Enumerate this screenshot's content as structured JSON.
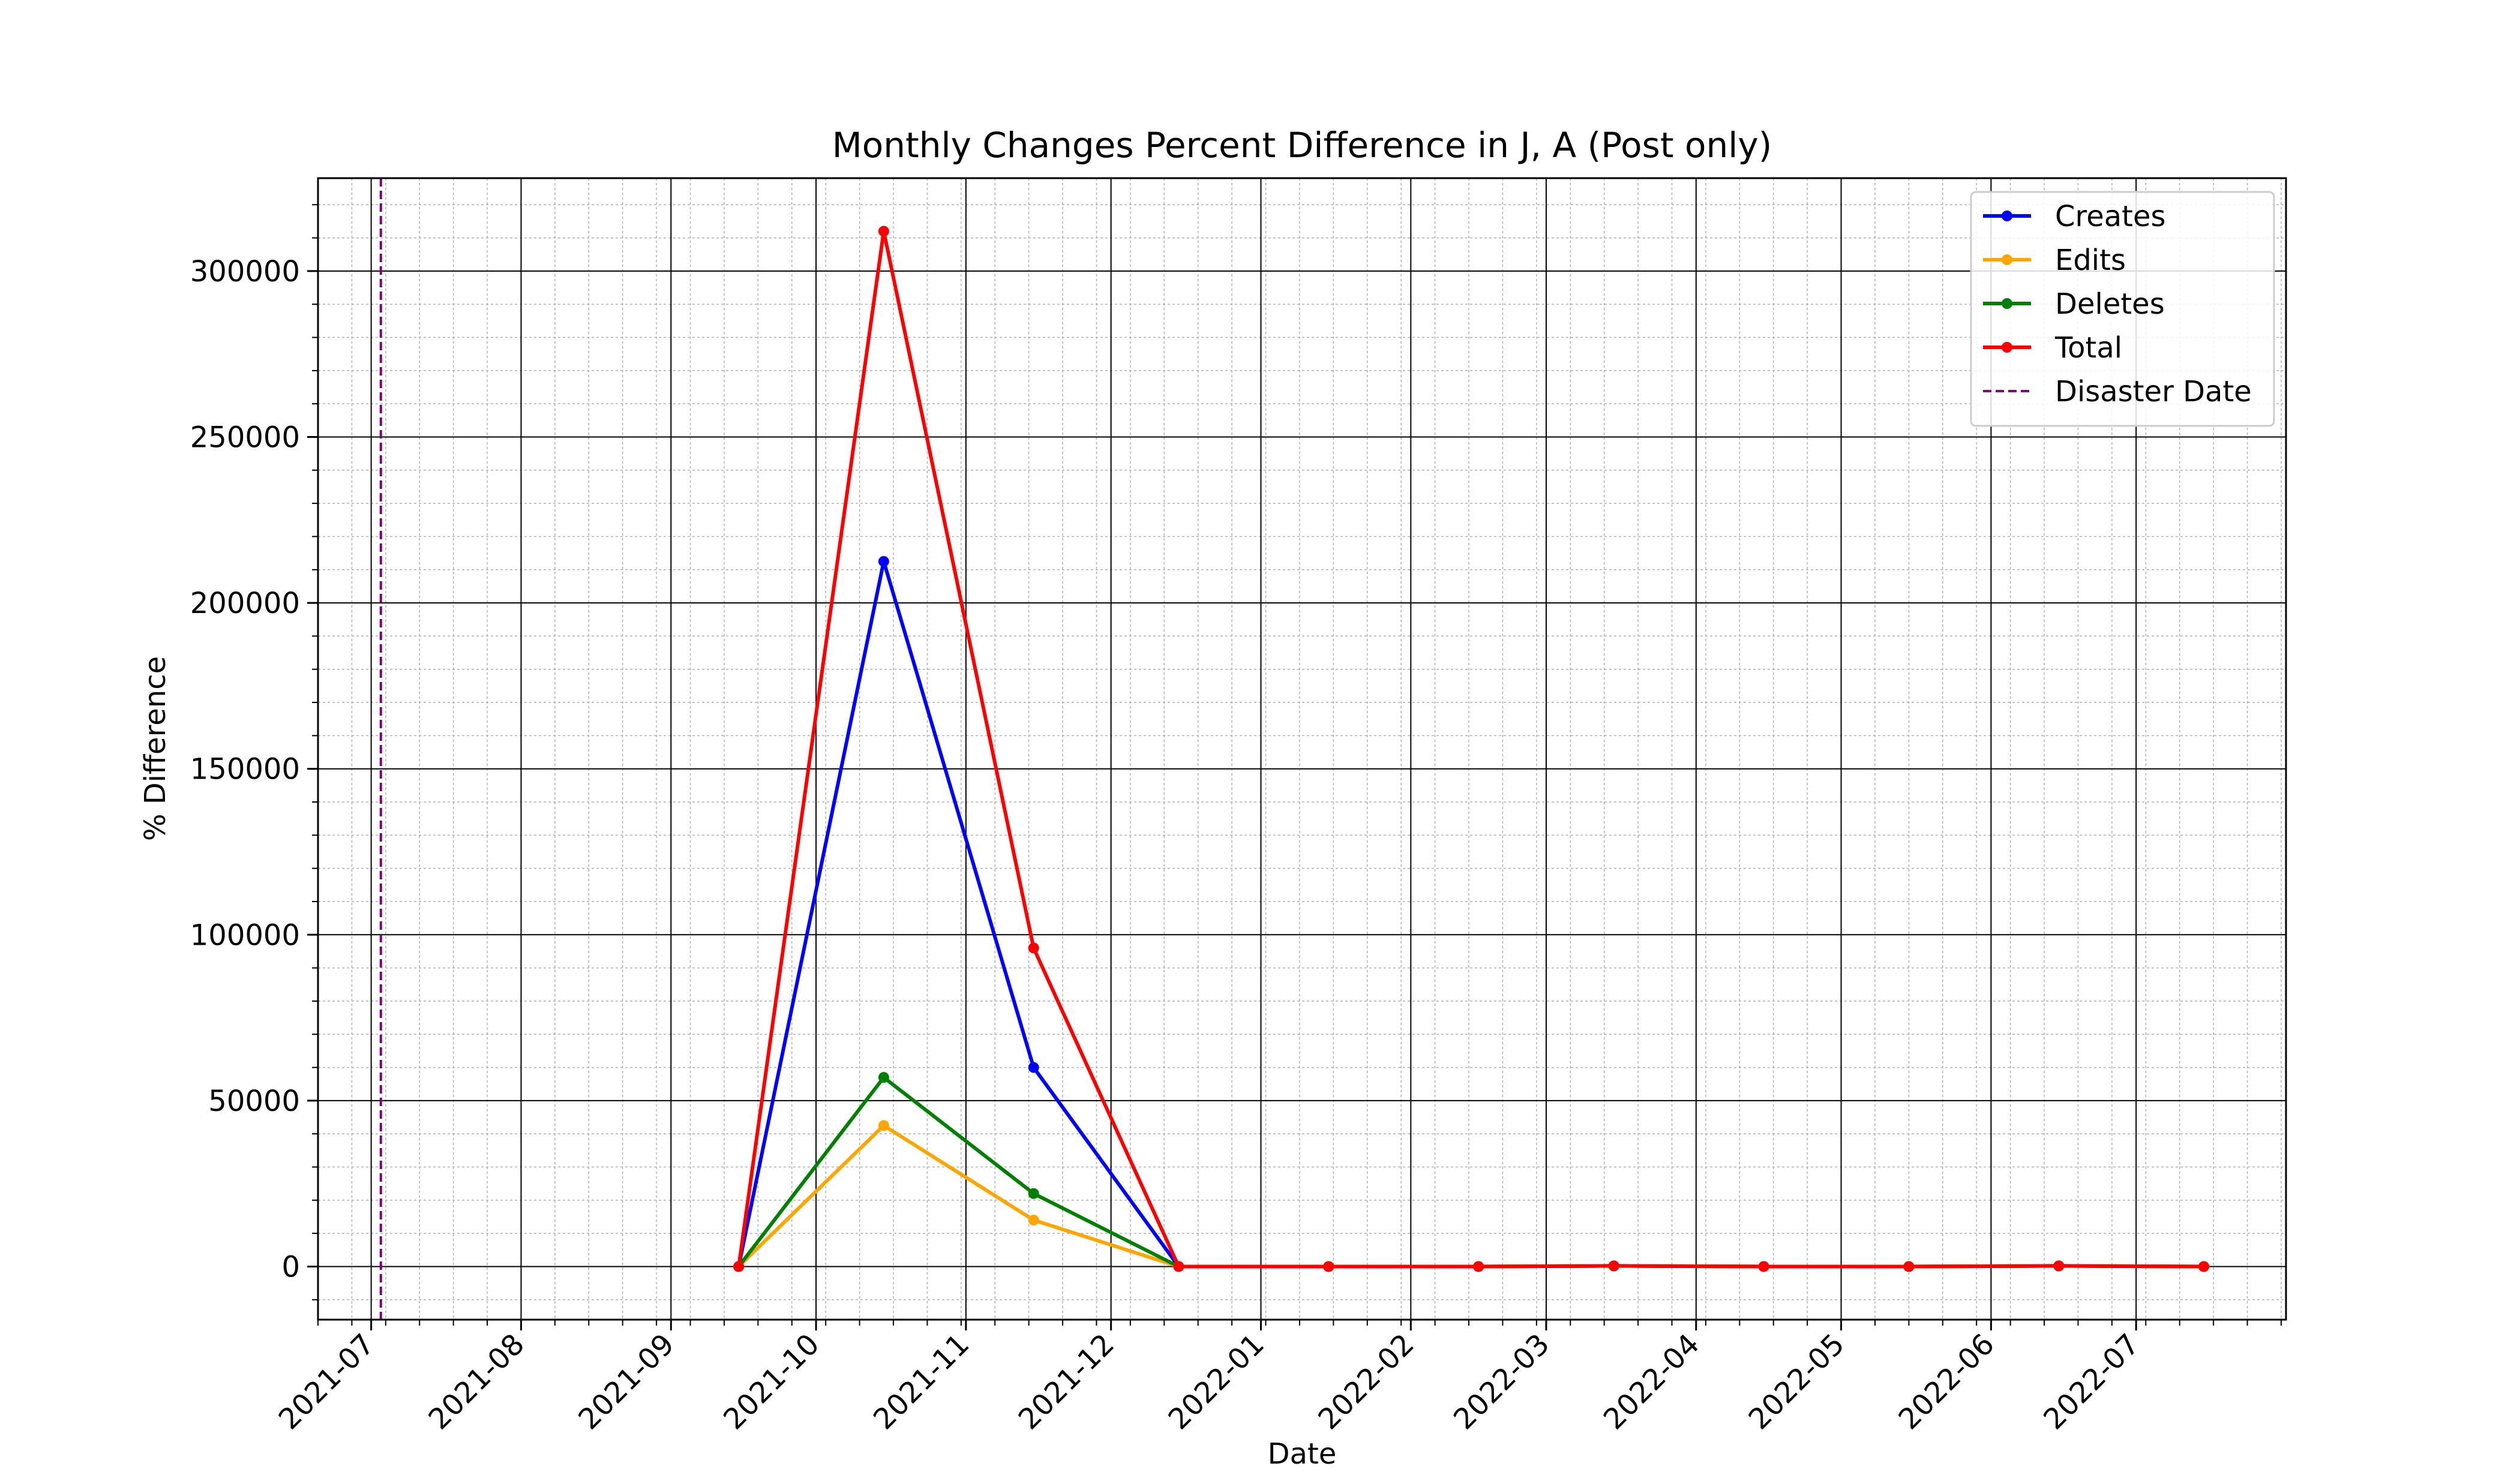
{
  "chart_data": {
    "type": "line",
    "title": "Monthly Changes Percent Difference in J, A (Post only)",
    "xlabel": "Date",
    "ylabel": "% Difference",
    "x": [
      "2021-09-15",
      "2021-10-15",
      "2021-11-15",
      "2021-12-15",
      "2022-01-15",
      "2022-02-15",
      "2022-03-15",
      "2022-04-15",
      "2022-05-15",
      "2022-06-15",
      "2022-07-15"
    ],
    "series": [
      {
        "name": "Creates",
        "color": "#0000ff",
        "values": [
          0,
          212500,
          60000,
          0,
          0,
          0,
          200,
          0,
          0,
          200,
          0
        ]
      },
      {
        "name": "Edits",
        "color": "#ffa500",
        "values": [
          0,
          42500,
          14000,
          0,
          0,
          0,
          200,
          0,
          0,
          200,
          0
        ]
      },
      {
        "name": "Deletes",
        "color": "#008000",
        "values": [
          0,
          57000,
          22000,
          0,
          0,
          0,
          200,
          0,
          0,
          200,
          0
        ]
      },
      {
        "name": "Total",
        "color": "#ff0000",
        "values": [
          0,
          312000,
          96000,
          0,
          0,
          0,
          200,
          0,
          0,
          200,
          0
        ]
      }
    ],
    "disaster": {
      "name": "Disaster Date",
      "date": "2021-07-03",
      "color": "#800080",
      "style": "dashed"
    },
    "xlim": [
      "2021-06-20",
      "2022-08-01"
    ],
    "ylim": [
      -16000,
      328000
    ],
    "yticks": [
      0,
      50000,
      100000,
      150000,
      200000,
      250000,
      300000
    ],
    "ytick_labels": [
      "0",
      "50000",
      "100000",
      "150000",
      "200000",
      "250000",
      "300000"
    ],
    "xticks": [
      "2021-07-01",
      "2021-08-01",
      "2021-09-01",
      "2021-10-01",
      "2021-11-01",
      "2021-12-01",
      "2022-01-01",
      "2022-02-01",
      "2022-03-01",
      "2022-04-01",
      "2022-05-01",
      "2022-06-01",
      "2022-07-01"
    ],
    "xtick_labels": [
      "2021-07",
      "2021-08",
      "2021-09",
      "2021-10",
      "2021-11",
      "2021-12",
      "2022-01",
      "2022-02",
      "2022-03",
      "2022-04",
      "2022-05",
      "2022-06",
      "2022-07"
    ],
    "grid": "major and minor",
    "legend_position": "top-right"
  }
}
